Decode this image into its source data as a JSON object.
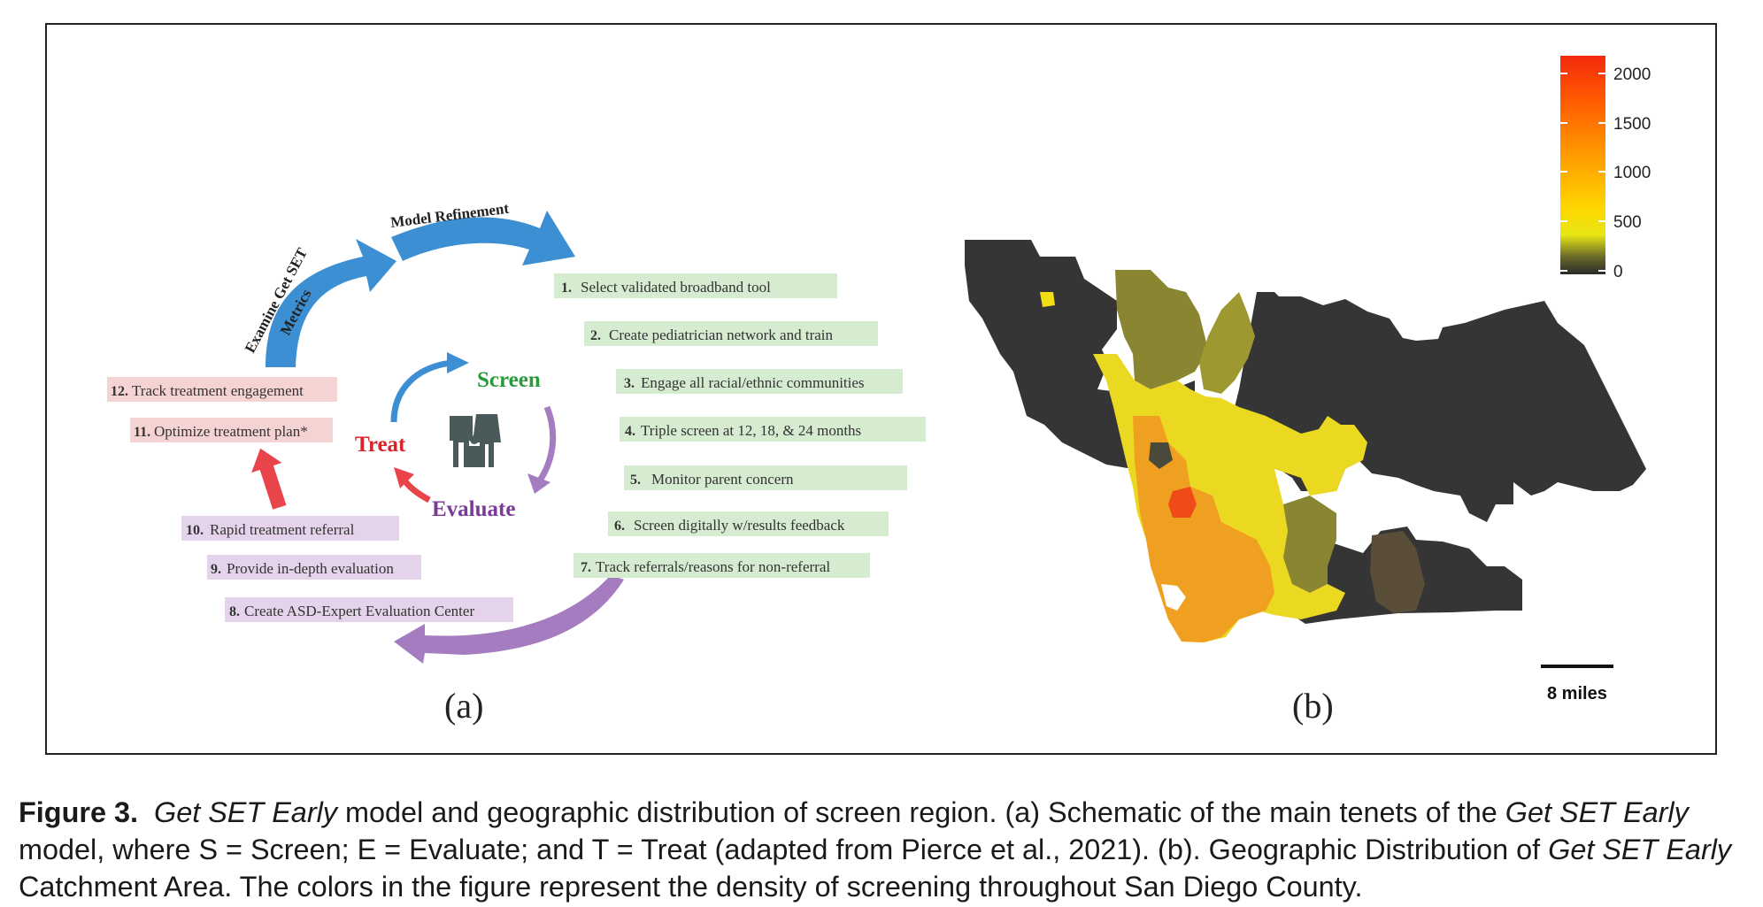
{
  "panel_a": {
    "top_arrow_label": "Model Refinement",
    "side_arrow_label_1": "Examine Get SET",
    "side_arrow_label_2": "Metrics",
    "center": {
      "screen": "Screen",
      "treat": "Treat",
      "evaluate": "Evaluate"
    },
    "steps": [
      {
        "num": "1.",
        "text": "Select validated broadband tool"
      },
      {
        "num": "2.",
        "text": "Create pediatrician network and train"
      },
      {
        "num": "3.",
        "text": "Engage all racial/ethnic communities"
      },
      {
        "num": "4.",
        "text": "Triple screen at 12, 18, & 24 months"
      },
      {
        "num": "5.",
        "text": "Monitor parent concern"
      },
      {
        "num": "6.",
        "text": "Screen digitally w/results feedback"
      },
      {
        "num": "7.",
        "text": "Track referrals/reasons for non-referral"
      },
      {
        "num": "8.",
        "text": "Create ASD-Expert Evaluation Center"
      },
      {
        "num": "9.",
        "text": "Provide in-depth evaluation"
      },
      {
        "num": "10.",
        "text": "Rapid treatment referral"
      },
      {
        "num": "11.",
        "text": "Optimize treatment plan*"
      },
      {
        "num": "12.",
        "text": "Track treatment engagement"
      }
    ],
    "panel_label": "(a)"
  },
  "panel_b": {
    "legend_ticks": [
      "2000",
      "1500",
      "1000",
      "500",
      "0"
    ],
    "scale_label": "8 miles",
    "panel_label": "(b)"
  },
  "colors": {
    "green_box": "#d5ecd1",
    "purple_box": "#e4d3ea",
    "red_box": "#f6d3d3",
    "blue_arrow": "#3c8fd3",
    "purple_arrow": "#a57cc0",
    "red_arrow": "#e8444a",
    "map_dark": "#353535"
  },
  "caption": {
    "fig": "Figure 3.",
    "s1_i": "Get SET Early",
    "s2": " model and geographic distribution of screen region. (a) Schematic of the main tenets of the ",
    "s3_i": "Get SET Early",
    "s4": "model, where S = Screen; E = Evaluate; and T = Treat (adapted from Pierce et al., 2021). (b). Geographic Distribution of ",
    "s5_i": "Get SET Early",
    "s6": "Catchment Area. The colors in the figure represent the density of screening throughout San Diego County."
  }
}
